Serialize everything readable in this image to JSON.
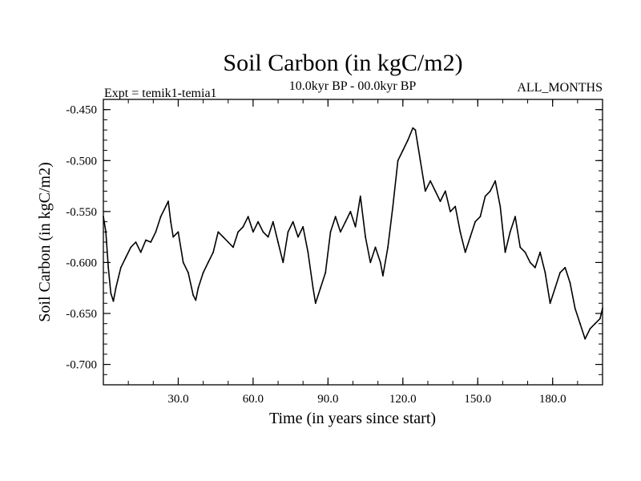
{
  "chart_data": {
    "type": "line",
    "title": "Soil Carbon (in kgC/m2)",
    "subtitle_left": "Expt = temik1-temia1",
    "subtitle_center": "10.0kyr BP - 00.0kyr BP",
    "subtitle_right": "ALL_MONTHS",
    "xlabel": "Time (in years since start)",
    "ylabel": "Soil Carbon (in kgC/m2)",
    "xlim": [
      0,
      200
    ],
    "ylim": [
      -0.72,
      -0.44
    ],
    "xticks": [
      30,
      60,
      90,
      120,
      150,
      180
    ],
    "xtick_labels": [
      "30.0",
      "60.0",
      "90.0",
      "120.0",
      "150.0",
      "180.0"
    ],
    "yticks": [
      -0.45,
      -0.5,
      -0.55,
      -0.6,
      -0.65,
      -0.7
    ],
    "ytick_labels": [
      "-0.450",
      "-0.500",
      "-0.550",
      "-0.600",
      "-0.650",
      "-0.700"
    ],
    "grid": false,
    "series": [
      {
        "name": "Soil Carbon",
        "x": [
          0,
          1,
          2,
          3,
          4,
          5,
          7,
          9,
          11,
          13,
          15,
          17,
          19,
          21,
          23,
          25,
          26,
          27,
          28,
          30,
          32,
          34,
          36,
          37,
          38,
          40,
          42,
          44,
          46,
          48,
          50,
          52,
          54,
          56,
          58,
          60,
          62,
          64,
          66,
          68,
          70,
          72,
          74,
          76,
          78,
          80,
          82,
          84,
          85,
          87,
          89,
          91,
          93,
          95,
          97,
          99,
          101,
          103,
          105,
          107,
          109,
          111,
          112,
          114,
          116,
          118,
          120,
          122,
          124,
          125,
          127,
          129,
          131,
          133,
          135,
          137,
          139,
          141,
          143,
          145,
          147,
          149,
          151,
          153,
          155,
          157,
          159,
          161,
          163,
          165,
          167,
          169,
          171,
          173,
          175,
          177,
          179,
          181,
          183,
          185,
          187,
          189,
          191,
          193,
          195,
          197,
          199,
          200
        ],
        "values": [
          -0.555,
          -0.57,
          -0.605,
          -0.63,
          -0.638,
          -0.625,
          -0.605,
          -0.595,
          -0.585,
          -0.58,
          -0.59,
          -0.578,
          -0.58,
          -0.57,
          -0.555,
          -0.545,
          -0.54,
          -0.56,
          -0.575,
          -0.57,
          -0.6,
          -0.61,
          -0.632,
          -0.637,
          -0.625,
          -0.61,
          -0.6,
          -0.59,
          -0.57,
          -0.575,
          -0.58,
          -0.585,
          -0.57,
          -0.565,
          -0.555,
          -0.57,
          -0.56,
          -0.57,
          -0.575,
          -0.56,
          -0.58,
          -0.6,
          -0.57,
          -0.56,
          -0.575,
          -0.565,
          -0.59,
          -0.625,
          -0.64,
          -0.625,
          -0.61,
          -0.57,
          -0.555,
          -0.57,
          -0.56,
          -0.55,
          -0.565,
          -0.535,
          -0.575,
          -0.6,
          -0.585,
          -0.6,
          -0.613,
          -0.585,
          -0.545,
          -0.5,
          -0.49,
          -0.48,
          -0.468,
          -0.47,
          -0.5,
          -0.53,
          -0.52,
          -0.53,
          -0.54,
          -0.53,
          -0.55,
          -0.545,
          -0.57,
          -0.59,
          -0.575,
          -0.56,
          -0.555,
          -0.535,
          -0.53,
          -0.52,
          -0.545,
          -0.59,
          -0.57,
          -0.555,
          -0.585,
          -0.59,
          -0.6,
          -0.605,
          -0.59,
          -0.61,
          -0.64,
          -0.625,
          -0.61,
          -0.605,
          -0.62,
          -0.645,
          -0.66,
          -0.675,
          -0.665,
          -0.66,
          -0.655,
          -0.645
        ]
      }
    ]
  }
}
